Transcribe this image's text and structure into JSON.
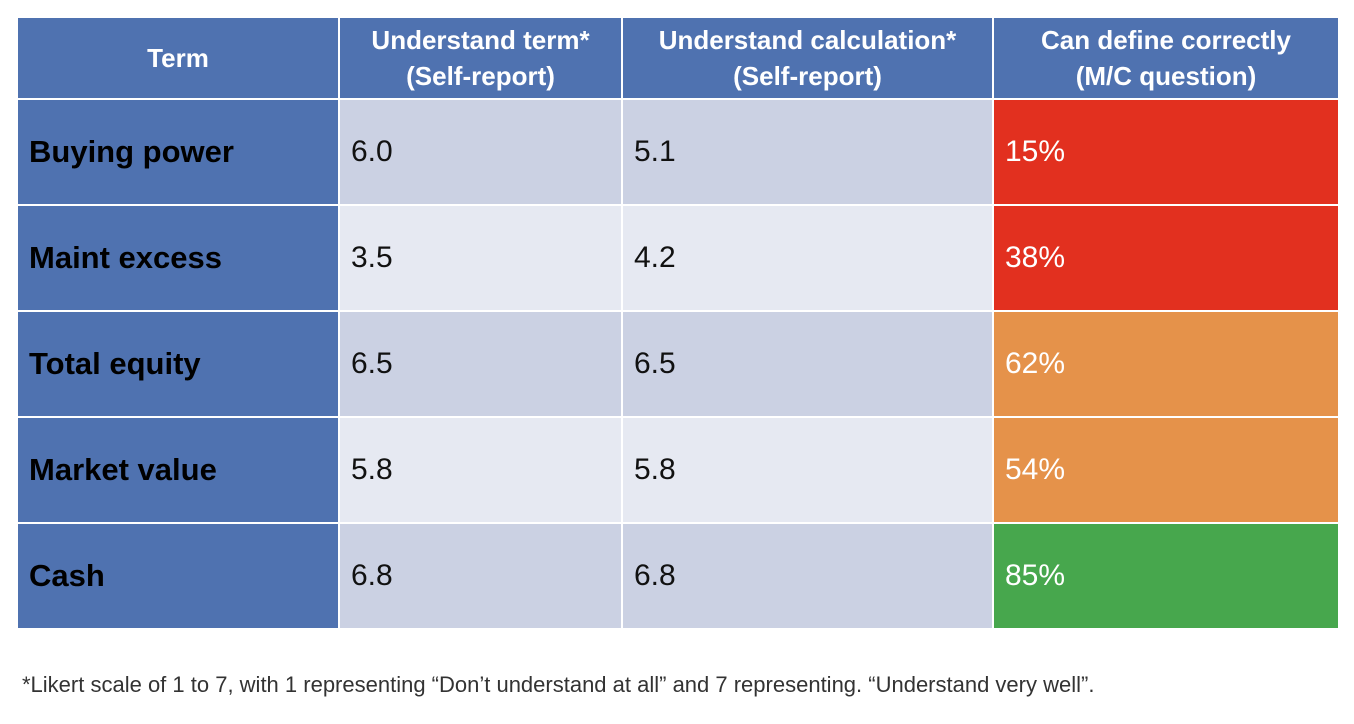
{
  "table": {
    "headers": [
      {
        "line1": "Term",
        "line2": ""
      },
      {
        "line1": "Understand term*",
        "line2": "(Self-report)"
      },
      {
        "line1": "Understand calculation*",
        "line2": "(Self-report)"
      },
      {
        "line1": "Can define correctly",
        "line2": "(M/C question)"
      }
    ],
    "rows": [
      {
        "term": "Buying power",
        "understand_term": "6.0",
        "understand_calc": "5.1",
        "can_define": "15%",
        "color": "#e2301f"
      },
      {
        "term": "Maint excess",
        "understand_term": "3.5",
        "understand_calc": "4.2",
        "can_define": "38%",
        "color": "#e2301f"
      },
      {
        "term": "Total equity",
        "understand_term": "6.5",
        "understand_calc": "6.5",
        "can_define": "62%",
        "color": "#e5924a"
      },
      {
        "term": "Market value",
        "understand_term": "5.8",
        "understand_calc": "5.8",
        "can_define": "54%",
        "color": "#e5924a"
      },
      {
        "term": "Cash",
        "understand_term": "6.8",
        "understand_calc": "6.8",
        "can_define": "85%",
        "color": "#47a74d"
      }
    ]
  },
  "footnote": "*Likert scale of 1 to 7, with 1 representing “Don’t understand at all” and 7 representing. “Understand very well”.",
  "colors": {
    "header_bg": "#4f72b0",
    "low": "#e2301f",
    "mid": "#e5924a",
    "high": "#47a74d"
  }
}
